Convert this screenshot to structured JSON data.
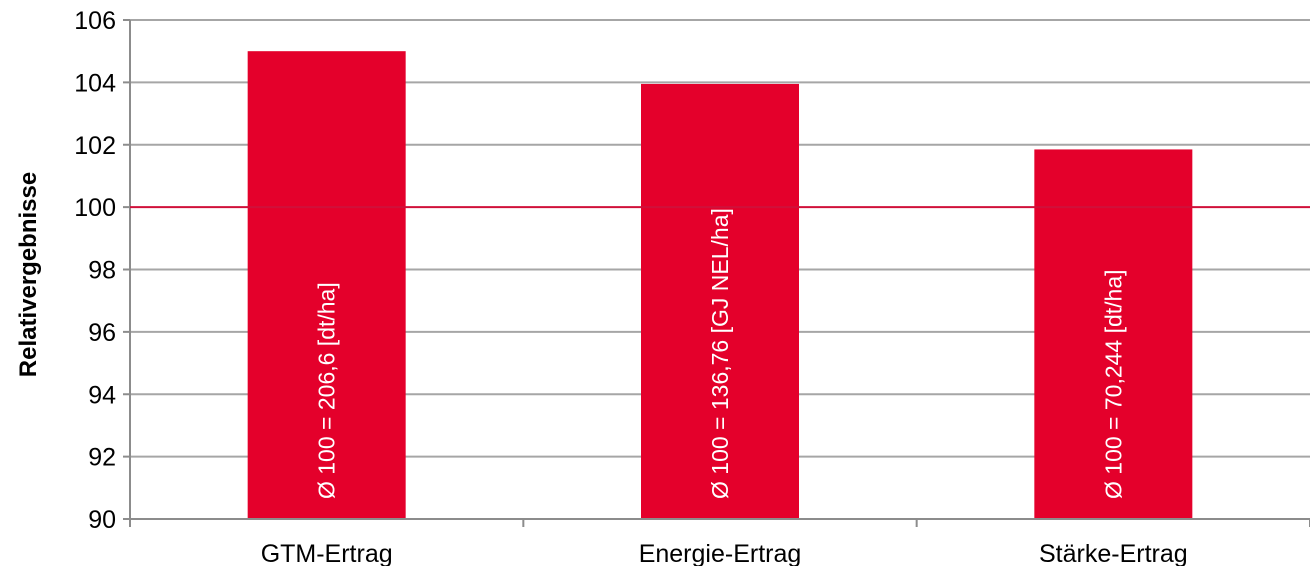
{
  "chart_data": {
    "type": "bar",
    "ylabel": "Relativergebnisse",
    "ylim": [
      90,
      106
    ],
    "yticks": [
      90,
      92,
      94,
      96,
      98,
      100,
      102,
      104,
      106
    ],
    "categories": [
      "GTM-Ertrag",
      "Energie-Ertrag",
      "Stärke-Ertrag"
    ],
    "values": [
      105.0,
      103.95,
      101.85
    ],
    "bar_labels": [
      "Ø 100 = 206,6 [dt/ha]",
      "Ø 100 = 136,76 [GJ NEL/ha]",
      "Ø 100 = 70,244 [dt/ha]"
    ],
    "reference_line": 100,
    "grid": true,
    "legend": "none",
    "colors": {
      "bar": "#e4002b",
      "reference_line": "#d0103a",
      "grid": "#a6a6a6",
      "axis": "#8c8c8c"
    }
  }
}
